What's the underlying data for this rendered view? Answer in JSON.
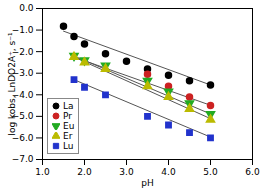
{
  "chart_data": {
    "type": "scatter",
    "title": "",
    "xlabel": "pH",
    "ylabel": "log kobs, LnDO2A⁺, s⁻¹",
    "xlim": [
      1,
      6
    ],
    "ylim": [
      -7,
      0
    ],
    "xticks": [
      1,
      2,
      3,
      4,
      5,
      6
    ],
    "yticks": [
      0,
      -1,
      -2,
      -3,
      -4,
      -5,
      -6,
      -7
    ],
    "grid": false,
    "legend": "lower left",
    "series": [
      {
        "name": "La",
        "color": "black",
        "marker": "circle",
        "x": [
          1.5,
          1.75,
          2.0,
          2.5,
          3.0,
          3.5,
          4.0,
          4.5,
          5.0
        ],
        "values": [
          -0.82,
          -1.3,
          -1.65,
          -2.1,
          -2.45,
          -2.8,
          -3.1,
          -3.35,
          -3.55
        ],
        "fit": {
          "x": [
            1.5,
            5.05
          ],
          "y": [
            -1.05,
            -3.58
          ],
          "color": "#555555"
        }
      },
      {
        "name": "Pr",
        "color": "#cc2222",
        "marker": "circle",
        "x": [
          3.5,
          4.0,
          4.5,
          5.0
        ],
        "values": [
          -3.05,
          -3.6,
          -4.1,
          -4.5
        ],
        "fit": {
          "x": [
            1.75,
            5.05
          ],
          "y": [
            -2.25,
            -4.52
          ],
          "color": "#555555"
        }
      },
      {
        "name": "Eu",
        "color": "#22aa22",
        "marker": "triangle-down",
        "x": [
          1.75,
          2.0,
          2.5,
          3.5,
          4.0,
          4.5,
          5.0
        ],
        "values": [
          -2.2,
          -2.4,
          -2.65,
          -3.35,
          -3.85,
          -4.4,
          -4.9
        ],
        "fit": {
          "x": [
            1.75,
            5.05
          ],
          "y": [
            -2.2,
            -4.93
          ],
          "color": "#555555"
        }
      },
      {
        "name": "Er",
        "color": "#bbbb00",
        "marker": "triangle",
        "x": [
          1.75,
          2.0,
          2.5,
          3.5,
          4.0,
          4.5,
          5.0
        ],
        "values": [
          -2.25,
          -2.5,
          -2.8,
          -3.6,
          -4.1,
          -4.65,
          -5.15
        ],
        "fit": {
          "x": [
            1.75,
            5.05
          ],
          "y": [
            -2.25,
            -5.15
          ],
          "color": "#555555"
        }
      },
      {
        "name": "Lu",
        "color": "#2233cc",
        "marker": "square",
        "x": [
          1.75,
          2.0,
          2.5,
          3.5,
          4.0,
          4.5,
          5.0
        ],
        "values": [
          -3.3,
          -3.65,
          -4.0,
          -5.0,
          -5.4,
          -5.75,
          -6.0
        ],
        "fit": {
          "x": [
            1.75,
            5.05
          ],
          "y": [
            -3.3,
            -6.0
          ],
          "color": "#555555"
        }
      }
    ]
  }
}
